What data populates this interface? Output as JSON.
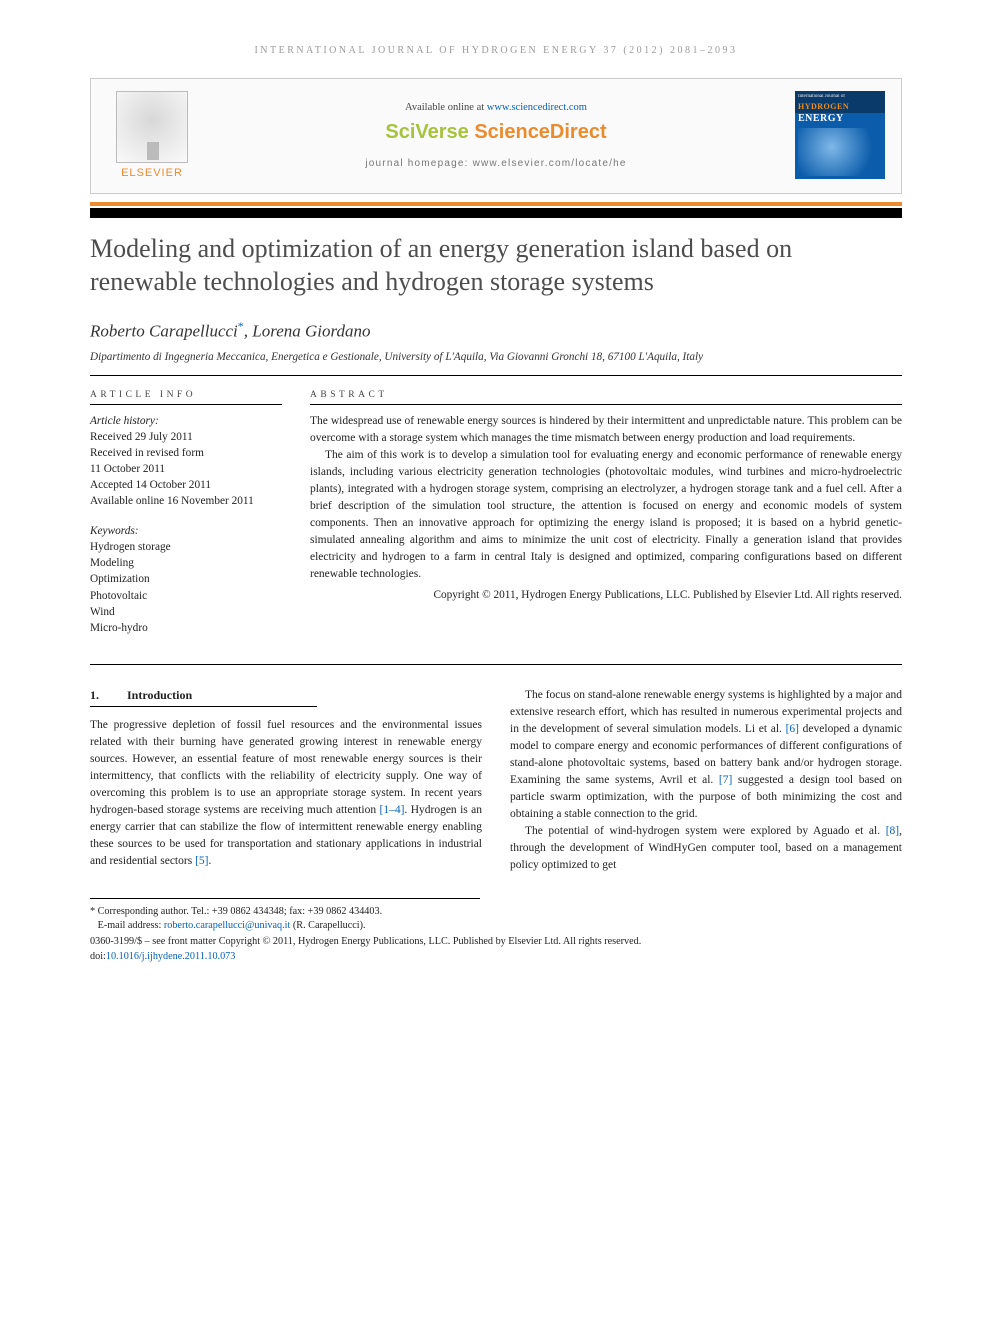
{
  "running_head": "INTERNATIONAL JOURNAL OF HYDROGEN ENERGY 37 (2012) 2081–2093",
  "header": {
    "available_prefix": "Available online at ",
    "available_link": "www.sciencedirect.com",
    "brand1": "SciVerse ",
    "brand2": "ScienceDirect",
    "homepage_prefix": "journal homepage: ",
    "homepage": "www.elsevier.com/locate/he",
    "publisher": "ELSEVIER",
    "cover": {
      "top": "International Journal of",
      "h": "HYDROGEN",
      "e": "ENERGY"
    }
  },
  "title": "Modeling and optimization of an energy generation island based on renewable technologies and hydrogen storage systems",
  "authors_html": "Roberto Carapellucci",
  "author2": ", Lorena Giordano",
  "corr_marker": "*",
  "affiliation": "Dipartimento di Ingegneria Meccanica, Energetica e Gestionale, University of L'Aquila, Via Giovanni Gronchi 18, 67100 L'Aquila, Italy",
  "info": {
    "head": "ARTICLE INFO",
    "hist_label": "Article history:",
    "received": "Received 29 July 2011",
    "revised1": "Received in revised form",
    "revised2": "11 October 2011",
    "accepted": "Accepted 14 October 2011",
    "online": "Available online 16 November 2011",
    "kw_label": "Keywords:",
    "kw": [
      "Hydrogen storage",
      "Modeling",
      "Optimization",
      "Photovoltaic",
      "Wind",
      "Micro-hydro"
    ]
  },
  "abstract": {
    "head": "ABSTRACT",
    "p1": "The widespread use of renewable energy sources is hindered by their intermittent and unpredictable nature. This problem can be overcome with a storage system which manages the time mismatch between energy production and load requirements.",
    "p2": "The aim of this work is to develop a simulation tool for evaluating energy and economic performance of renewable energy islands, including various electricity generation technologies (photovoltaic modules, wind turbines and micro-hydroelectric plants), integrated with a hydrogen storage system, comprising an electrolyzer, a hydrogen storage tank and a fuel cell. After a brief description of the simulation tool structure, the attention is focused on energy and economic models of system components. Then an innovative approach for optimizing the energy island is proposed; it is based on a hybrid genetic-simulated annealing algorithm and aims to minimize the unit cost of electricity. Finally a generation island that provides electricity and hydrogen to a farm in central Italy is designed and optimized, comparing configurations based on different renewable technologies.",
    "copy": "Copyright © 2011, Hydrogen Energy Publications, LLC. Published by Elsevier Ltd. All rights reserved."
  },
  "section1": {
    "num": "1.",
    "title": "Introduction"
  },
  "col1": {
    "p1a": "The progressive depletion of fossil fuel resources and the environmental issues related with their burning have generated growing interest in renewable energy sources. However, an essential feature of most renewable energy sources is their intermittency, that conflicts with the reliability of electricity supply. One way of overcoming this problem is to use an appropriate storage system. In recent years hydrogen-based storage systems are receiving much attention ",
    "ref1": "[1–4]",
    "p1b": ". Hydrogen is an energy carrier that can stabilize the flow of intermittent renewable energy enabling these sources to be used for transportation and stationary applications in industrial and residential sectors ",
    "ref2": "[5]",
    "p1c": "."
  },
  "col2": {
    "p1a": "The focus on stand-alone renewable energy systems is highlighted by a major and extensive research effort, which has resulted in numerous experimental projects and in the development of several simulation models. Li et al. ",
    "ref6": "[6]",
    "p1b": " developed a dynamic model to compare energy and economic performances of different configurations of stand-alone photovoltaic systems, based on battery bank and/or hydrogen storage. Examining the same systems, Avril et al. ",
    "ref7": "[7]",
    "p1c": " suggested a design tool based on particle swarm optimization, with the purpose of both minimizing the cost and obtaining a stable connection to the grid.",
    "p2a": "The potential of wind-hydrogen system were explored by Aguado et al. ",
    "ref8": "[8]",
    "p2b": ", through the development of WindHyGen computer tool, based on a management policy optimized to get"
  },
  "footnotes": {
    "corr": "* Corresponding author. Tel.: +39 0862 434348; fax: +39 0862 434403.",
    "email_label": "E-mail address: ",
    "email": "roberto.carapellucci@univaq.it",
    "email_suffix": " (R. Carapellucci)."
  },
  "bottom": {
    "issn": "0360-3199/$ – see front matter Copyright © 2011, Hydrogen Energy Publications, LLC. Published by Elsevier Ltd. All rights reserved.",
    "doi_label": "doi:",
    "doi": "10.1016/j.ijhydene.2011.10.073"
  },
  "colors": {
    "orange": "#e98b2e",
    "link": "#0662b6",
    "green": "#a7c23c",
    "grey_title": "#4d4d4d"
  }
}
